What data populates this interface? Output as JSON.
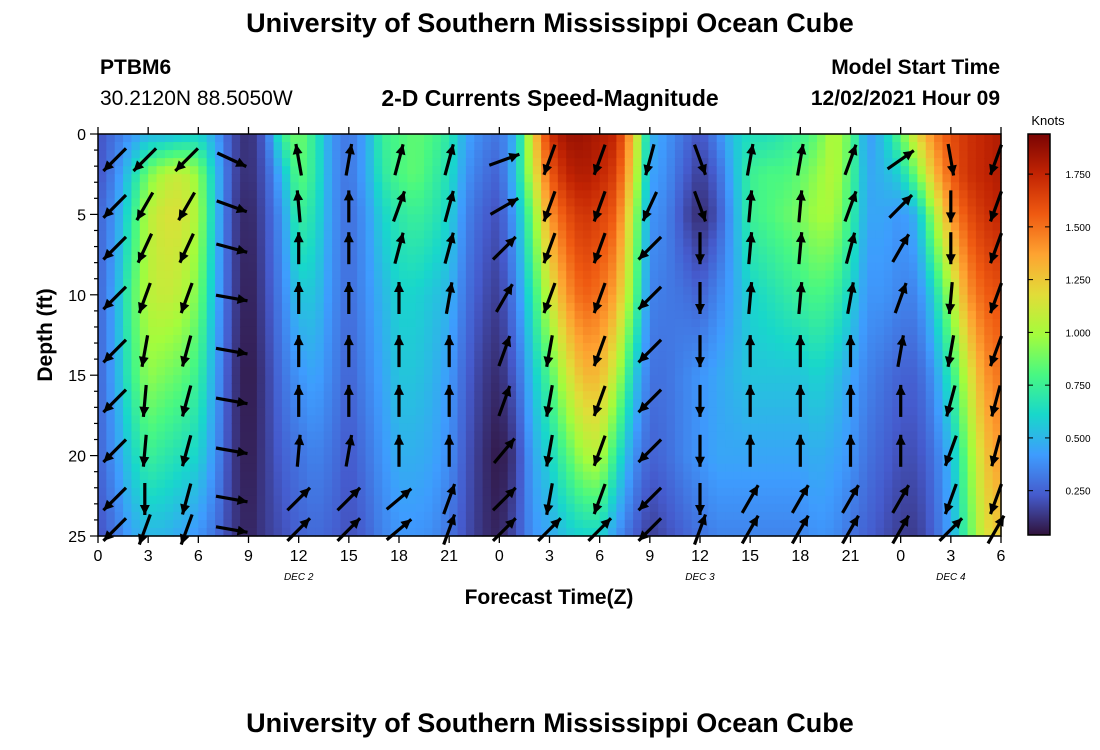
{
  "header": {
    "title": "University of Southern Mississippi Ocean Cube",
    "station": "PTBM6",
    "coords": "30.2120N  88.5050W",
    "plot_title": "2-D Currents Speed-Magnitude",
    "model_label": "Model Start Time",
    "model_time": "12/02/2021 Hour 09"
  },
  "footer": {
    "title": "University of Southern Mississippi Ocean Cube"
  },
  "chart_data": {
    "type": "heatmap",
    "title": "2-D Currents Speed-Magnitude",
    "xlabel": "Forecast Time(Z)",
    "ylabel": "Depth (ft)",
    "x_ticks": [
      "0",
      "3",
      "6",
      "9",
      "12",
      "15",
      "18",
      "21",
      "0",
      "3",
      "6",
      "9",
      "12",
      "15",
      "18",
      "21",
      "0",
      "3",
      "6"
    ],
    "day_labels": [
      {
        "label": "DEC 2",
        "hour": 12
      },
      {
        "label": "DEC 3",
        "hour": 36
      },
      {
        "label": "DEC 4",
        "hour": 51
      }
    ],
    "y_ticks": [
      0,
      5,
      10,
      15,
      20,
      25
    ],
    "xlim": [
      0,
      54
    ],
    "ylim": [
      0,
      25
    ],
    "y_inverted": true,
    "colorbar": {
      "unit": "Knots",
      "ticks": [
        "0.250",
        "0.500",
        "0.750",
        "1.000",
        "1.250",
        "1.500",
        "1.750"
      ],
      "tick_values": [
        0.25,
        0.5,
        0.75,
        1.0,
        1.25,
        1.5,
        1.75
      ],
      "range": [
        0.04,
        1.94
      ]
    },
    "speed_profiles": {
      "hours": [
        0,
        1,
        2,
        3,
        4,
        5,
        6,
        7,
        8,
        9,
        10,
        11,
        12,
        13,
        14,
        15,
        16,
        17,
        18,
        19,
        20,
        21,
        22,
        23,
        24,
        25,
        26,
        27,
        28,
        29,
        30,
        31,
        32,
        33,
        34,
        35,
        36,
        37,
        38,
        39,
        40,
        41,
        42,
        43,
        44,
        45,
        46,
        47,
        48,
        49,
        50,
        51,
        52,
        53,
        54
      ],
      "depths": [
        0,
        2.5,
        5,
        10,
        15,
        20,
        25
      ],
      "speed": [
        [
          0.2,
          0.2,
          0.25,
          0.25,
          0.25,
          0.25,
          0.2
        ],
        [
          0.3,
          0.35,
          0.4,
          0.45,
          0.45,
          0.4,
          0.3
        ],
        [
          0.4,
          0.6,
          0.7,
          0.8,
          0.75,
          0.6,
          0.45
        ],
        [
          0.5,
          0.9,
          1.05,
          1.05,
          0.95,
          0.75,
          0.5
        ],
        [
          0.5,
          1.05,
          1.15,
          1.1,
          0.9,
          0.7,
          0.5
        ],
        [
          0.55,
          1.1,
          1.15,
          1.05,
          0.85,
          0.65,
          0.45
        ],
        [
          0.6,
          0.95,
          1.0,
          0.9,
          0.75,
          0.6,
          0.4
        ],
        [
          0.45,
          0.55,
          0.55,
          0.5,
          0.45,
          0.4,
          0.3
        ],
        [
          0.2,
          0.2,
          0.18,
          0.18,
          0.15,
          0.15,
          0.15
        ],
        [
          0.1,
          0.1,
          0.08,
          0.06,
          0.05,
          0.06,
          0.08
        ],
        [
          0.25,
          0.22,
          0.2,
          0.18,
          0.15,
          0.15,
          0.15
        ],
        [
          0.75,
          0.5,
          0.4,
          0.35,
          0.3,
          0.25,
          0.2
        ],
        [
          0.9,
          0.85,
          0.75,
          0.55,
          0.4,
          0.3,
          0.25
        ],
        [
          0.7,
          0.7,
          0.65,
          0.55,
          0.45,
          0.35,
          0.28
        ],
        [
          0.4,
          0.4,
          0.4,
          0.38,
          0.35,
          0.3,
          0.25
        ],
        [
          0.3,
          0.3,
          0.28,
          0.28,
          0.25,
          0.22,
          0.2
        ],
        [
          0.45,
          0.45,
          0.4,
          0.38,
          0.35,
          0.3,
          0.25
        ],
        [
          0.75,
          0.7,
          0.6,
          0.5,
          0.45,
          0.4,
          0.35
        ],
        [
          0.8,
          0.8,
          0.7,
          0.6,
          0.55,
          0.48,
          0.4
        ],
        [
          0.85,
          0.85,
          0.75,
          0.6,
          0.55,
          0.48,
          0.4
        ],
        [
          0.8,
          0.75,
          0.7,
          0.55,
          0.5,
          0.45,
          0.38
        ],
        [
          0.7,
          0.65,
          0.6,
          0.5,
          0.42,
          0.38,
          0.3
        ],
        [
          0.45,
          0.4,
          0.35,
          0.3,
          0.25,
          0.22,
          0.2
        ],
        [
          0.35,
          0.3,
          0.25,
          0.2,
          0.15,
          0.12,
          0.12
        ],
        [
          0.3,
          0.25,
          0.2,
          0.15,
          0.1,
          0.05,
          0.08
        ],
        [
          0.5,
          0.55,
          0.45,
          0.35,
          0.25,
          0.15,
          0.2
        ],
        [
          1.2,
          1.1,
          0.9,
          0.7,
          0.55,
          0.45,
          0.4
        ],
        [
          1.7,
          1.55,
          1.4,
          1.1,
          0.8,
          0.6,
          0.45
        ],
        [
          1.85,
          1.75,
          1.6,
          1.4,
          1.1,
          0.8,
          0.55
        ],
        [
          1.85,
          1.8,
          1.7,
          1.55,
          1.3,
          1.0,
          0.6
        ],
        [
          1.8,
          1.75,
          1.65,
          1.5,
          1.3,
          1.05,
          0.6
        ],
        [
          1.75,
          1.65,
          1.55,
          1.35,
          1.05,
          0.7,
          0.4
        ],
        [
          1.3,
          1.2,
          1.05,
          0.9,
          0.6,
          0.4,
          0.25
        ],
        [
          0.5,
          0.45,
          0.4,
          0.35,
          0.3,
          0.25,
          0.15
        ],
        [
          0.4,
          0.38,
          0.35,
          0.32,
          0.3,
          0.28,
          0.2
        ],
        [
          0.3,
          0.25,
          0.2,
          0.3,
          0.35,
          0.35,
          0.25
        ],
        [
          0.2,
          0.15,
          0.1,
          0.25,
          0.4,
          0.4,
          0.3
        ],
        [
          0.35,
          0.25,
          0.2,
          0.35,
          0.45,
          0.45,
          0.35
        ],
        [
          0.55,
          0.5,
          0.45,
          0.45,
          0.5,
          0.45,
          0.35
        ],
        [
          0.65,
          0.75,
          0.75,
          0.6,
          0.55,
          0.45,
          0.35
        ],
        [
          0.65,
          0.8,
          0.8,
          0.65,
          0.55,
          0.45,
          0.35
        ],
        [
          0.7,
          0.8,
          0.85,
          0.7,
          0.55,
          0.45,
          0.35
        ],
        [
          0.75,
          0.85,
          0.9,
          0.75,
          0.55,
          0.45,
          0.35
        ],
        [
          0.85,
          0.95,
          1.0,
          0.8,
          0.6,
          0.48,
          0.4
        ],
        [
          1.05,
          1.05,
          1.0,
          0.75,
          0.55,
          0.45,
          0.38
        ],
        [
          0.85,
          0.8,
          0.75,
          0.6,
          0.45,
          0.4,
          0.3
        ],
        [
          0.4,
          0.45,
          0.45,
          0.4,
          0.35,
          0.3,
          0.25
        ],
        [
          0.55,
          0.5,
          0.45,
          0.4,
          0.3,
          0.25,
          0.2
        ],
        [
          0.85,
          0.6,
          0.4,
          0.35,
          0.25,
          0.2,
          0.15
        ],
        [
          1.2,
          0.9,
          0.5,
          0.35,
          0.25,
          0.2,
          0.15
        ],
        [
          1.45,
          1.3,
          1.0,
          0.6,
          0.4,
          0.3,
          0.25
        ],
        [
          1.6,
          1.55,
          1.4,
          1.0,
          0.7,
          0.5,
          0.45
        ],
        [
          1.7,
          1.7,
          1.6,
          1.4,
          1.1,
          0.9,
          0.8
        ],
        [
          1.75,
          1.75,
          1.7,
          1.55,
          1.4,
          1.25,
          1.15
        ],
        [
          1.8,
          1.8,
          1.75,
          1.6,
          1.5,
          1.4,
          1.25
        ]
      ]
    },
    "vectors": {
      "hours": [
        1,
        2.8,
        5.3,
        8,
        12,
        15,
        18,
        21,
        24.3,
        27,
        30,
        33,
        36,
        39,
        42,
        45,
        48,
        51,
        53.7
      ],
      "depths": [
        1.6,
        4.5,
        7.1,
        10.2,
        13.5,
        16.6,
        19.7,
        22.7,
        24.6
      ],
      "angles_deg": [
        [
          225,
          225,
          225,
          225,
          225,
          225,
          225,
          225,
          225
        ],
        [
          225,
          210,
          205,
          200,
          190,
          185,
          185,
          180,
          200
        ],
        [
          225,
          210,
          205,
          200,
          195,
          195,
          195,
          195,
          200
        ],
        [
          115,
          110,
          105,
          100,
          100,
          100,
          100,
          100,
          100
        ],
        [
          350,
          355,
          360,
          360,
          0,
          0,
          5,
          45,
          45
        ],
        [
          10,
          0,
          0,
          0,
          0,
          0,
          10,
          45,
          45
        ],
        [
          15,
          20,
          15,
          0,
          0,
          0,
          0,
          50,
          50
        ],
        [
          15,
          15,
          15,
          10,
          0,
          0,
          0,
          20,
          20
        ],
        [
          70,
          60,
          45,
          30,
          20,
          20,
          40,
          45,
          45
        ],
        [
          200,
          200,
          200,
          200,
          190,
          190,
          190,
          190,
          45
        ],
        [
          200,
          200,
          200,
          200,
          200,
          200,
          200,
          200,
          45
        ],
        [
          195,
          205,
          225,
          225,
          225,
          225,
          225,
          225,
          225
        ],
        [
          160,
          160,
          180,
          180,
          180,
          180,
          180,
          180,
          20
        ],
        [
          10,
          5,
          5,
          5,
          0,
          0,
          0,
          30,
          30
        ],
        [
          10,
          5,
          5,
          5,
          0,
          0,
          0,
          30,
          30
        ],
        [
          20,
          20,
          15,
          10,
          0,
          0,
          0,
          30,
          30
        ],
        [
          55,
          45,
          30,
          20,
          10,
          0,
          0,
          30,
          30
        ],
        [
          170,
          180,
          180,
          185,
          190,
          195,
          200,
          200,
          45
        ],
        [
          200,
          200,
          200,
          200,
          200,
          195,
          195,
          200,
          30
        ]
      ]
    }
  }
}
